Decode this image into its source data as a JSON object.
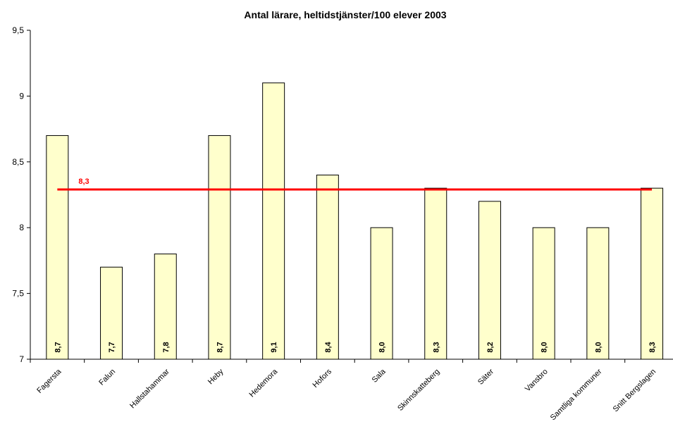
{
  "chart_data": {
    "type": "bar",
    "title": "Antal lärare, heltidstjänster/100 elever 2003",
    "categories": [
      "Fagersta",
      "Falun",
      "Hallstahammar",
      "Heby",
      "Hedemora",
      "Hofors",
      "Sala",
      "Skinnskatteberg",
      "Säter",
      "Vansbro",
      "Samtliga kommuner",
      "Snitt Bergslagen"
    ],
    "values": [
      8.7,
      7.7,
      7.8,
      8.7,
      9.1,
      8.4,
      8.0,
      8.3,
      8.2,
      8.0,
      8.0,
      8.3
    ],
    "data_labels": [
      "8,7",
      "7,7",
      "7,8",
      "8,7",
      "9,1",
      "8,4",
      "8,0",
      "8,3",
      "8,2",
      "8,0",
      "8,0",
      "8,3"
    ],
    "ylim": [
      7,
      9.5
    ],
    "yticks": [
      7,
      7.5,
      8,
      8.5,
      9,
      9.5
    ],
    "ytick_labels": [
      "7",
      "7,5",
      "8",
      "8,5",
      "9",
      "9,5"
    ],
    "reference_line": {
      "value": 8.29,
      "label": "8,3"
    },
    "grid": false,
    "colors": {
      "bar_fill": "#FFFFCC",
      "bar_stroke": "#000000",
      "reference_line": "#FF0000"
    }
  }
}
